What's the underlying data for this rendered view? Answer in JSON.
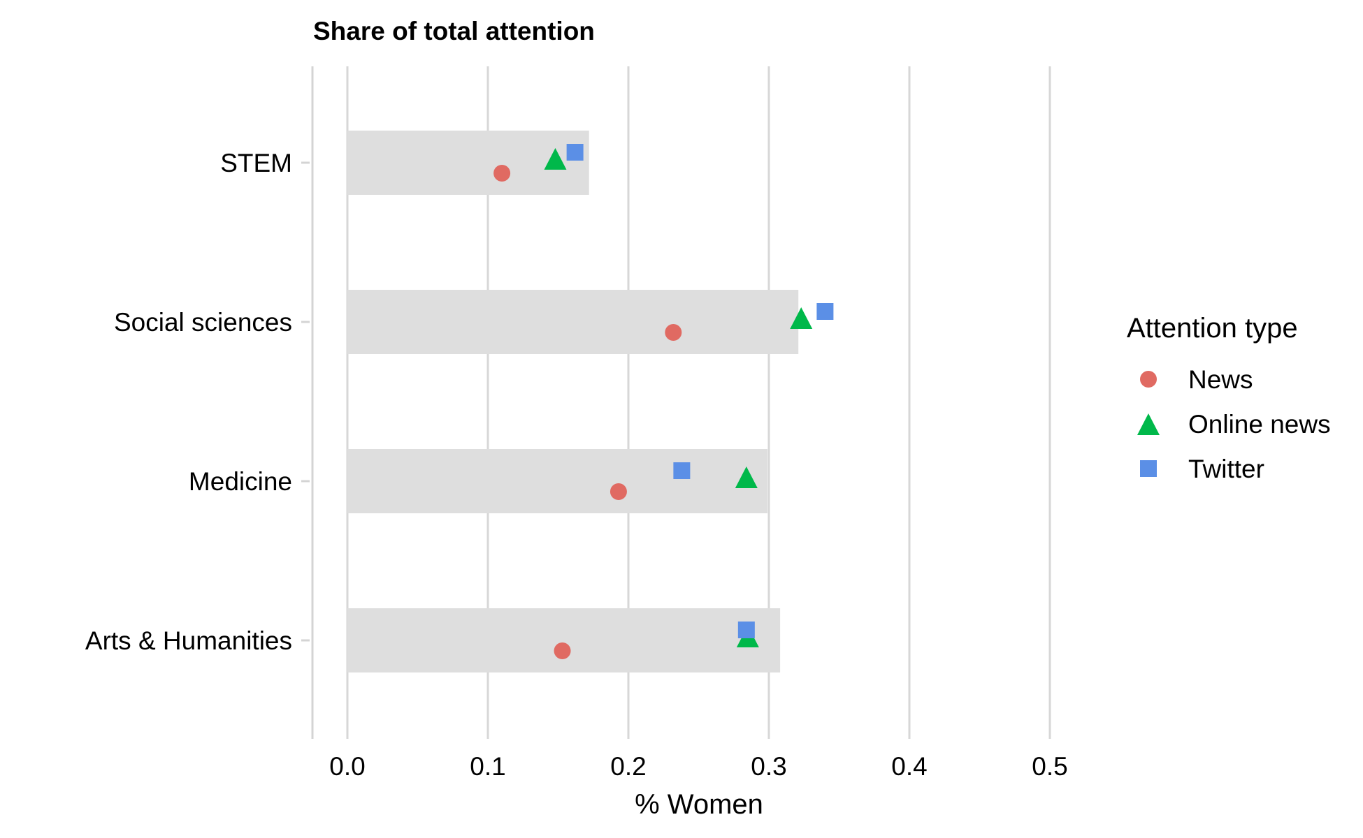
{
  "chart_data": {
    "type": "scatter",
    "title": "Share of total attention",
    "xlabel": "% Women",
    "ylabel": "",
    "xlim": [
      -0.025,
      0.52
    ],
    "xticks": [
      0.0,
      0.1,
      0.2,
      0.3,
      0.4,
      0.5
    ],
    "xtick_labels": [
      "0.0",
      "0.1",
      "0.2",
      "0.3",
      "0.4",
      "0.5"
    ],
    "grid": true,
    "legend_position": "right",
    "legend_title": "Attention type",
    "categories": [
      "STEM",
      "Social sciences",
      "Medicine",
      "Arts & Humanities"
    ],
    "background_bars": {
      "values": [
        0.172,
        0.321,
        0.299,
        0.308
      ],
      "color": "#dedede"
    },
    "series": [
      {
        "name": "News",
        "shape": "circle",
        "color": "#e06a62",
        "values": [
          0.11,
          0.232,
          0.193,
          0.153
        ]
      },
      {
        "name": "Online news",
        "shape": "triangle",
        "color": "#00b84a",
        "values": [
          0.148,
          0.323,
          0.284,
          0.285
        ]
      },
      {
        "name": "Twitter",
        "shape": "square",
        "color": "#5b8fe6",
        "values": [
          0.162,
          0.34,
          0.238,
          0.284
        ]
      }
    ]
  }
}
